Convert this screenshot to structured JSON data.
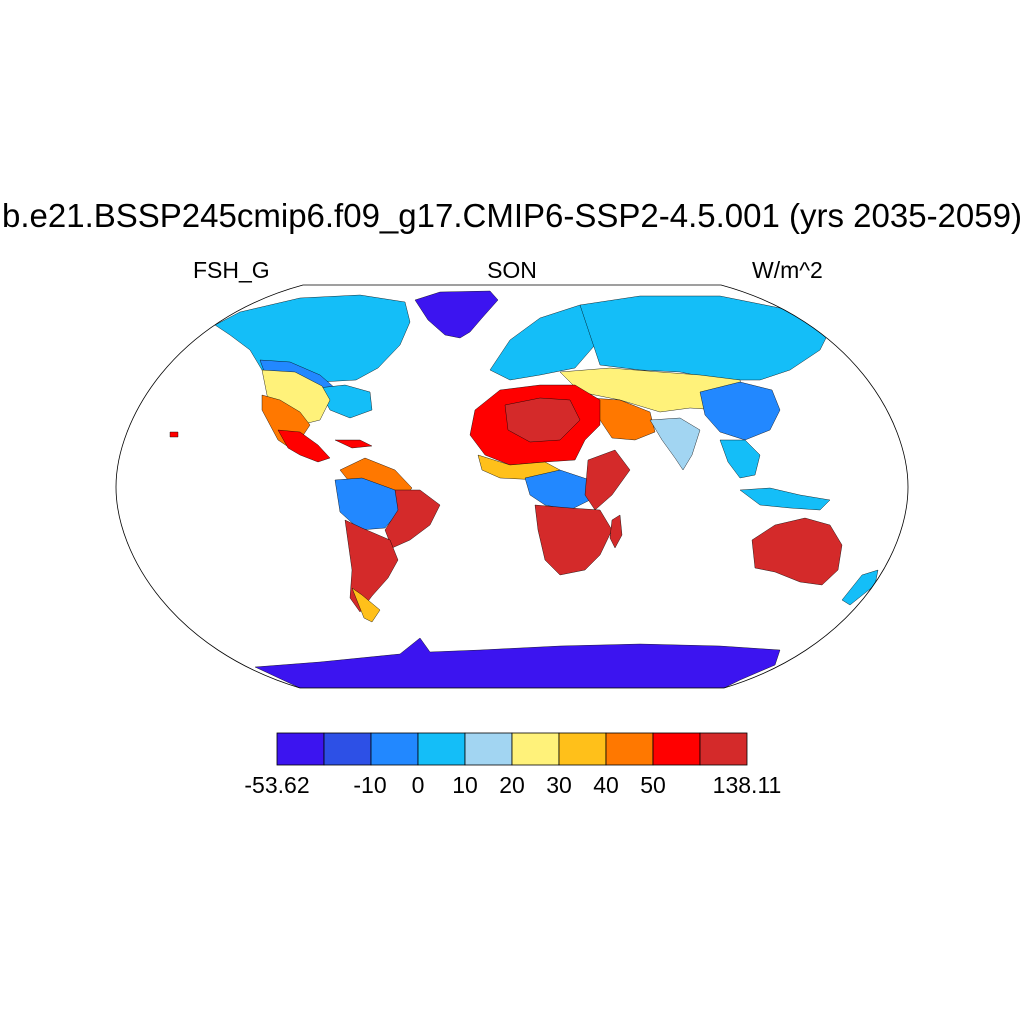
{
  "title": "b.e21.BSSP245cmip6.f09_g17.CMIP6-SSP2-4.5.001 (yrs 2035-2059)",
  "subtitle_left": "FSH_G",
  "subtitle_center": "SON",
  "subtitle_right": "W/m^2",
  "colorbar": {
    "colors": [
      "#3c14f0",
      "#2d50e6",
      "#2288ff",
      "#14bef8",
      "#a2d5f2",
      "#fff27a",
      "#ffc01a",
      "#ff7800",
      "#ff0000",
      "#d42a2a"
    ],
    "labels": [
      "-53.62",
      "-10",
      "0",
      "10",
      "20",
      "30",
      "40",
      "50",
      "138.11"
    ]
  },
  "map": {
    "projection": "Robinson",
    "colors": {
      "ocean": "#ffffff",
      "antarctica": "#3c14f0",
      "greenland": "#3c14f0",
      "boreal": "#14bef8",
      "cool": "#2288ff",
      "pale": "#a2d5f2",
      "mild": "#fff27a",
      "warm": "#ffc01a",
      "hot": "#ff7800",
      "very_hot": "#ff0000",
      "max": "#d42a2a"
    }
  }
}
